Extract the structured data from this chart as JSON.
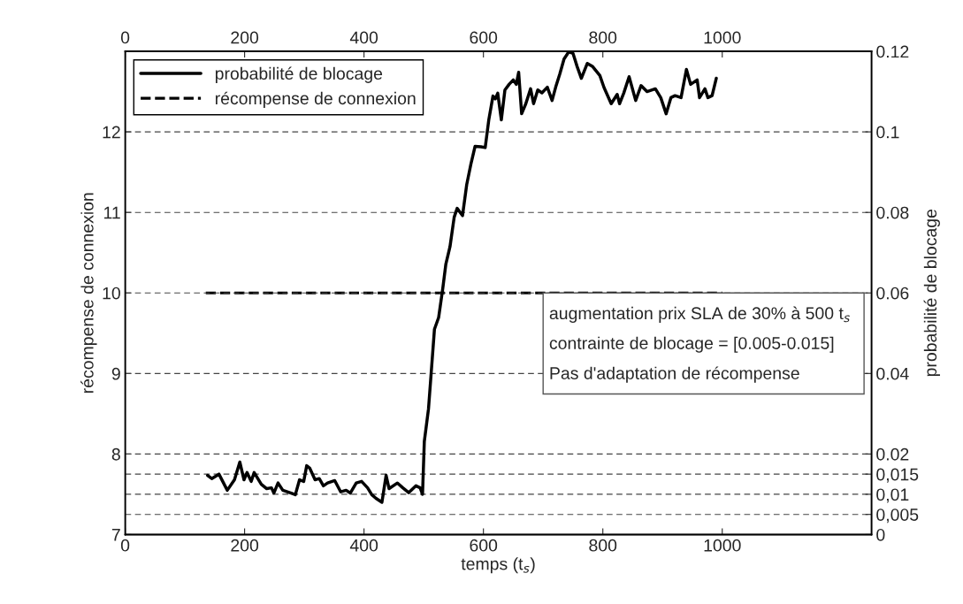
{
  "chart_data": {
    "type": "line",
    "xlabel": "temps (t$_{s}$)",
    "ylabel": "récompense de connexion",
    "y2label": "probabilité de blocage",
    "xlim": [
      0,
      1250
    ],
    "xticks": [
      0,
      200,
      400,
      600,
      800,
      1000
    ],
    "x2lim": [
      0,
      1250
    ],
    "x2ticks": [
      0,
      200,
      400,
      600,
      800,
      1000
    ],
    "ylim": [
      7,
      13
    ],
    "yticks": [
      7,
      8,
      9,
      10,
      11,
      12
    ],
    "y2lim": [
      0,
      0.12
    ],
    "y2ticks": [
      0,
      {
        "value": 0.005,
        "label": "0,005"
      },
      {
        "value": 0.01,
        "label": "0,01"
      },
      {
        "value": 0.015,
        "label": "0,015"
      },
      0.02,
      0.04,
      0.06,
      0.08,
      0.1,
      0.12
    ],
    "grid": "y",
    "legend": "top left",
    "annotations": [
      "augmentation prix SLA de 30% à 500 t$_{s}$",
      "contrainte de blocage = [0.005-0.015]",
      "Pas d'adaptation de récompense"
    ],
    "series": [
      {
        "name": "probabilité de blocage",
        "color": "#000000",
        "axis": "y2",
        "line_style": "solid",
        "x": [
          138,
          145,
          157,
          171,
          183,
          192,
          199,
          204,
          211,
          216,
          228,
          237,
          245,
          249,
          256,
          264,
          278,
          285,
          292,
          299,
          304,
          309,
          318,
          325,
          332,
          339,
          351,
          361,
          370,
          377,
          387,
          396,
          406,
          413,
          420,
          430,
          437,
          442,
          456,
          465,
          475,
          487,
          494,
          498,
          501,
          508,
          518,
          525,
          532,
          537,
          544,
          551,
          556,
          565,
          572,
          579,
          586,
          596,
          603,
          609,
          616,
          620,
          624,
          630,
          636,
          643,
          650,
          655,
          659,
          664,
          671,
          679,
          684,
          691,
          698,
          707,
          715,
          721,
          728,
          735,
          743,
          750,
          757,
          764,
          774,
          783,
          795,
          802,
          814,
          824,
          828,
          835,
          844,
          855,
          864,
          874,
          888,
          897,
          906,
          914,
          921,
          931,
          940,
          947,
          958,
          962,
          971,
          976,
          983,
          990
        ],
        "values": [
          0.0147,
          0.0139,
          0.015,
          0.011,
          0.0136,
          0.018,
          0.0136,
          0.0154,
          0.0132,
          0.0154,
          0.0125,
          0.0114,
          0.0116,
          0.0103,
          0.0128,
          0.011,
          0.0103,
          0.0099,
          0.0136,
          0.0132,
          0.0171,
          0.0165,
          0.0136,
          0.0139,
          0.0121,
          0.0128,
          0.0134,
          0.0106,
          0.011,
          0.0103,
          0.0128,
          0.0132,
          0.0116,
          0.0099,
          0.009,
          0.008,
          0.0147,
          0.0114,
          0.0128,
          0.0116,
          0.0104,
          0.0121,
          0.0116,
          0.01,
          0.0231,
          0.0312,
          0.051,
          0.0539,
          0.0612,
          0.0671,
          0.0715,
          0.0788,
          0.081,
          0.0792,
          0.0869,
          0.092,
          0.0964,
          0.0963,
          0.0961,
          0.103,
          0.1089,
          0.1082,
          0.1096,
          0.103,
          0.1104,
          0.1118,
          0.1129,
          0.1118,
          0.1148,
          0.1045,
          0.107,
          0.1107,
          0.107,
          0.1104,
          0.1097,
          0.1111,
          0.1078,
          0.1111,
          0.1144,
          0.1181,
          0.1199,
          0.1195,
          0.1162,
          0.1133,
          0.117,
          0.1162,
          0.114,
          0.111,
          0.107,
          0.1093,
          0.107,
          0.1096,
          0.1137,
          0.1078,
          0.1115,
          0.11,
          0.1107,
          0.1085,
          0.1045,
          0.1085,
          0.109,
          0.1085,
          0.1155,
          0.1118,
          0.1129,
          0.1085,
          0.1107,
          0.1085,
          0.109,
          0.1133
        ]
      },
      {
        "name": "récompense de connexion",
        "color": "#000000",
        "line_style": "dashed",
        "x": [
          135,
          1000
        ],
        "values": [
          10,
          10
        ]
      }
    ]
  }
}
